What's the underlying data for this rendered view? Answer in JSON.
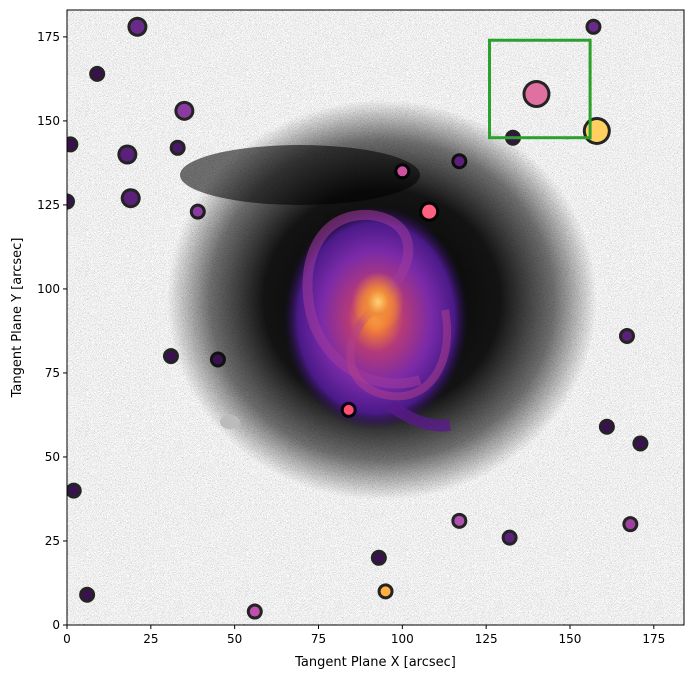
{
  "figure": {
    "xlabel": "Tangent Plane X [arcsec]",
    "ylabel": "Tangent Plane Y [arcsec]"
  },
  "chart_data": {
    "type": "heatmap",
    "title": "",
    "xlabel": "Tangent Plane X [arcsec]",
    "ylabel": "Tangent Plane Y [arcsec]",
    "xlim": [
      0,
      184
    ],
    "ylim": [
      0,
      183
    ],
    "xticks": [
      "0",
      "25",
      "50",
      "75",
      "100",
      "125",
      "150",
      "175"
    ],
    "yticks": [
      "0",
      "25",
      "50",
      "75",
      "100",
      "125",
      "150",
      "175"
    ],
    "xtick_values": [
      0,
      25,
      50,
      75,
      100,
      125,
      150,
      175
    ],
    "ytick_values": [
      0,
      25,
      50,
      75,
      100,
      125,
      150,
      175
    ],
    "grid": false,
    "background_colormap": "greys (noise-dominated sky)",
    "overlay_colormap": "inferno/magma (galaxy)",
    "galaxy": {
      "center": [
        93,
        96
      ],
      "description": "face-on spiral galaxy"
    },
    "highlight_box": {
      "x": [
        126,
        156
      ],
      "y": [
        145,
        174
      ],
      "color": "#2ca02c"
    },
    "sources": [
      {
        "x": 140,
        "y": 158,
        "color": "#e070a0"
      },
      {
        "x": 158,
        "y": 147,
        "color": "#ffd060"
      },
      {
        "x": 35,
        "y": 153,
        "color": "#8a3aa0"
      },
      {
        "x": 21,
        "y": 178,
        "color": "#6a2a8a"
      },
      {
        "x": 18,
        "y": 140,
        "color": "#5a207a"
      },
      {
        "x": 19,
        "y": 127,
        "color": "#5a207a"
      },
      {
        "x": 108,
        "y": 123,
        "color": "#ff6080"
      },
      {
        "x": 56,
        "y": 4,
        "color": "#c050b0"
      },
      {
        "x": 95,
        "y": 10,
        "color": "#ffb040"
      },
      {
        "x": 84,
        "y": 64,
        "color": "#ff5070"
      },
      {
        "x": 117,
        "y": 31,
        "color": "#b050b0"
      },
      {
        "x": 168,
        "y": 30,
        "color": "#a040a0"
      },
      {
        "x": 167,
        "y": 86,
        "color": "#5a207a"
      },
      {
        "x": 171,
        "y": 54,
        "color": "#3a1050"
      },
      {
        "x": 33,
        "y": 142,
        "color": "#4a1868"
      },
      {
        "x": 39,
        "y": 123,
        "color": "#8a3aa0"
      },
      {
        "x": 157,
        "y": 178,
        "color": "#6a2a8a"
      },
      {
        "x": 133,
        "y": 145,
        "color": "#3a1050"
      },
      {
        "x": 100,
        "y": 135,
        "color": "#d050a0"
      },
      {
        "x": 9,
        "y": 164,
        "color": "#3a1050"
      },
      {
        "x": 6,
        "y": 9,
        "color": "#3a1050"
      },
      {
        "x": 93,
        "y": 20,
        "color": "#3a1050"
      },
      {
        "x": 132,
        "y": 26,
        "color": "#5a207a"
      },
      {
        "x": 31,
        "y": 80,
        "color": "#3a1050"
      },
      {
        "x": 45,
        "y": 79,
        "color": "#3a1050"
      },
      {
        "x": 117,
        "y": 138,
        "color": "#5a207a"
      },
      {
        "x": 0,
        "y": 126,
        "color": "#3a1050"
      },
      {
        "x": 1,
        "y": 143,
        "color": "#3a1050"
      },
      {
        "x": 161,
        "y": 59,
        "color": "#3a1050"
      },
      {
        "x": 2,
        "y": 40,
        "color": "#3a1050"
      }
    ]
  }
}
